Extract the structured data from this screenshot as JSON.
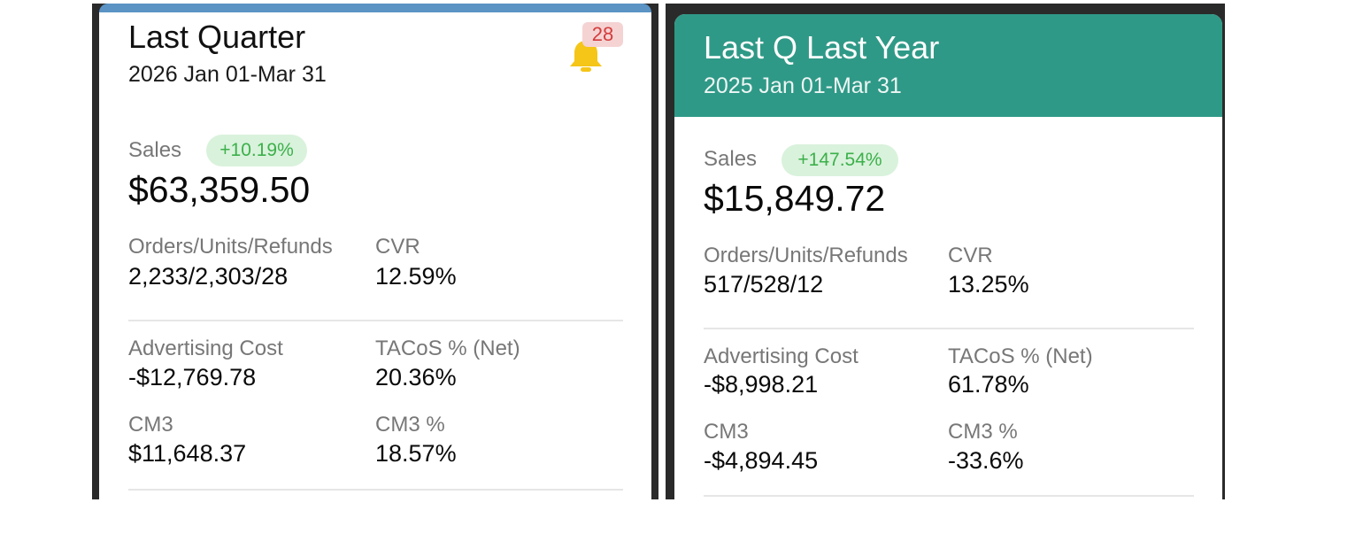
{
  "cards": [
    {
      "title": "Last Quarter",
      "date_range": "2026 Jan 01-Mar 31",
      "notification_count": "28",
      "sales_label": "Sales",
      "sales_change": "+10.19%",
      "sales_value": "$63,359.50",
      "orders_label": "Orders/Units/Refunds",
      "orders_value": "2,233/2,303/28",
      "cvr_label": "CVR",
      "cvr_value": "12.59%",
      "ad_cost_label": "Advertising Cost",
      "ad_cost_value": "-$12,769.78",
      "tacos_label": "TACoS % (Net)",
      "tacos_value": "20.36%",
      "cm3_label": "CM3",
      "cm3_value": "$11,648.37",
      "cm3_pct_label": "CM3 %",
      "cm3_pct_value": "18.57%",
      "accent_color": "#5a93c4"
    },
    {
      "title": "Last Q Last Year",
      "date_range": "2025 Jan 01-Mar 31",
      "sales_label": "Sales",
      "sales_change": "+147.54%",
      "sales_value": "$15,849.72",
      "orders_label": "Orders/Units/Refunds",
      "orders_value": "517/528/12",
      "cvr_label": "CVR",
      "cvr_value": "13.25%",
      "ad_cost_label": "Advertising Cost",
      "ad_cost_value": "-$8,998.21",
      "tacos_label": "TACoS % (Net)",
      "tacos_value": "61.78%",
      "cm3_label": "CM3",
      "cm3_value": "-$4,894.45",
      "cm3_pct_label": "CM3 %",
      "cm3_pct_value": "-33.6%",
      "header_color": "#2f9987"
    }
  ],
  "icons": {
    "notification": "bell-icon"
  },
  "colors": {
    "positive_badge_bg": "#d9f2dc",
    "positive_badge_text": "#3cb04a",
    "alert_badge_bg": "#f5d3d3",
    "alert_badge_text": "#d33c3c",
    "bell": "#f5c518"
  }
}
